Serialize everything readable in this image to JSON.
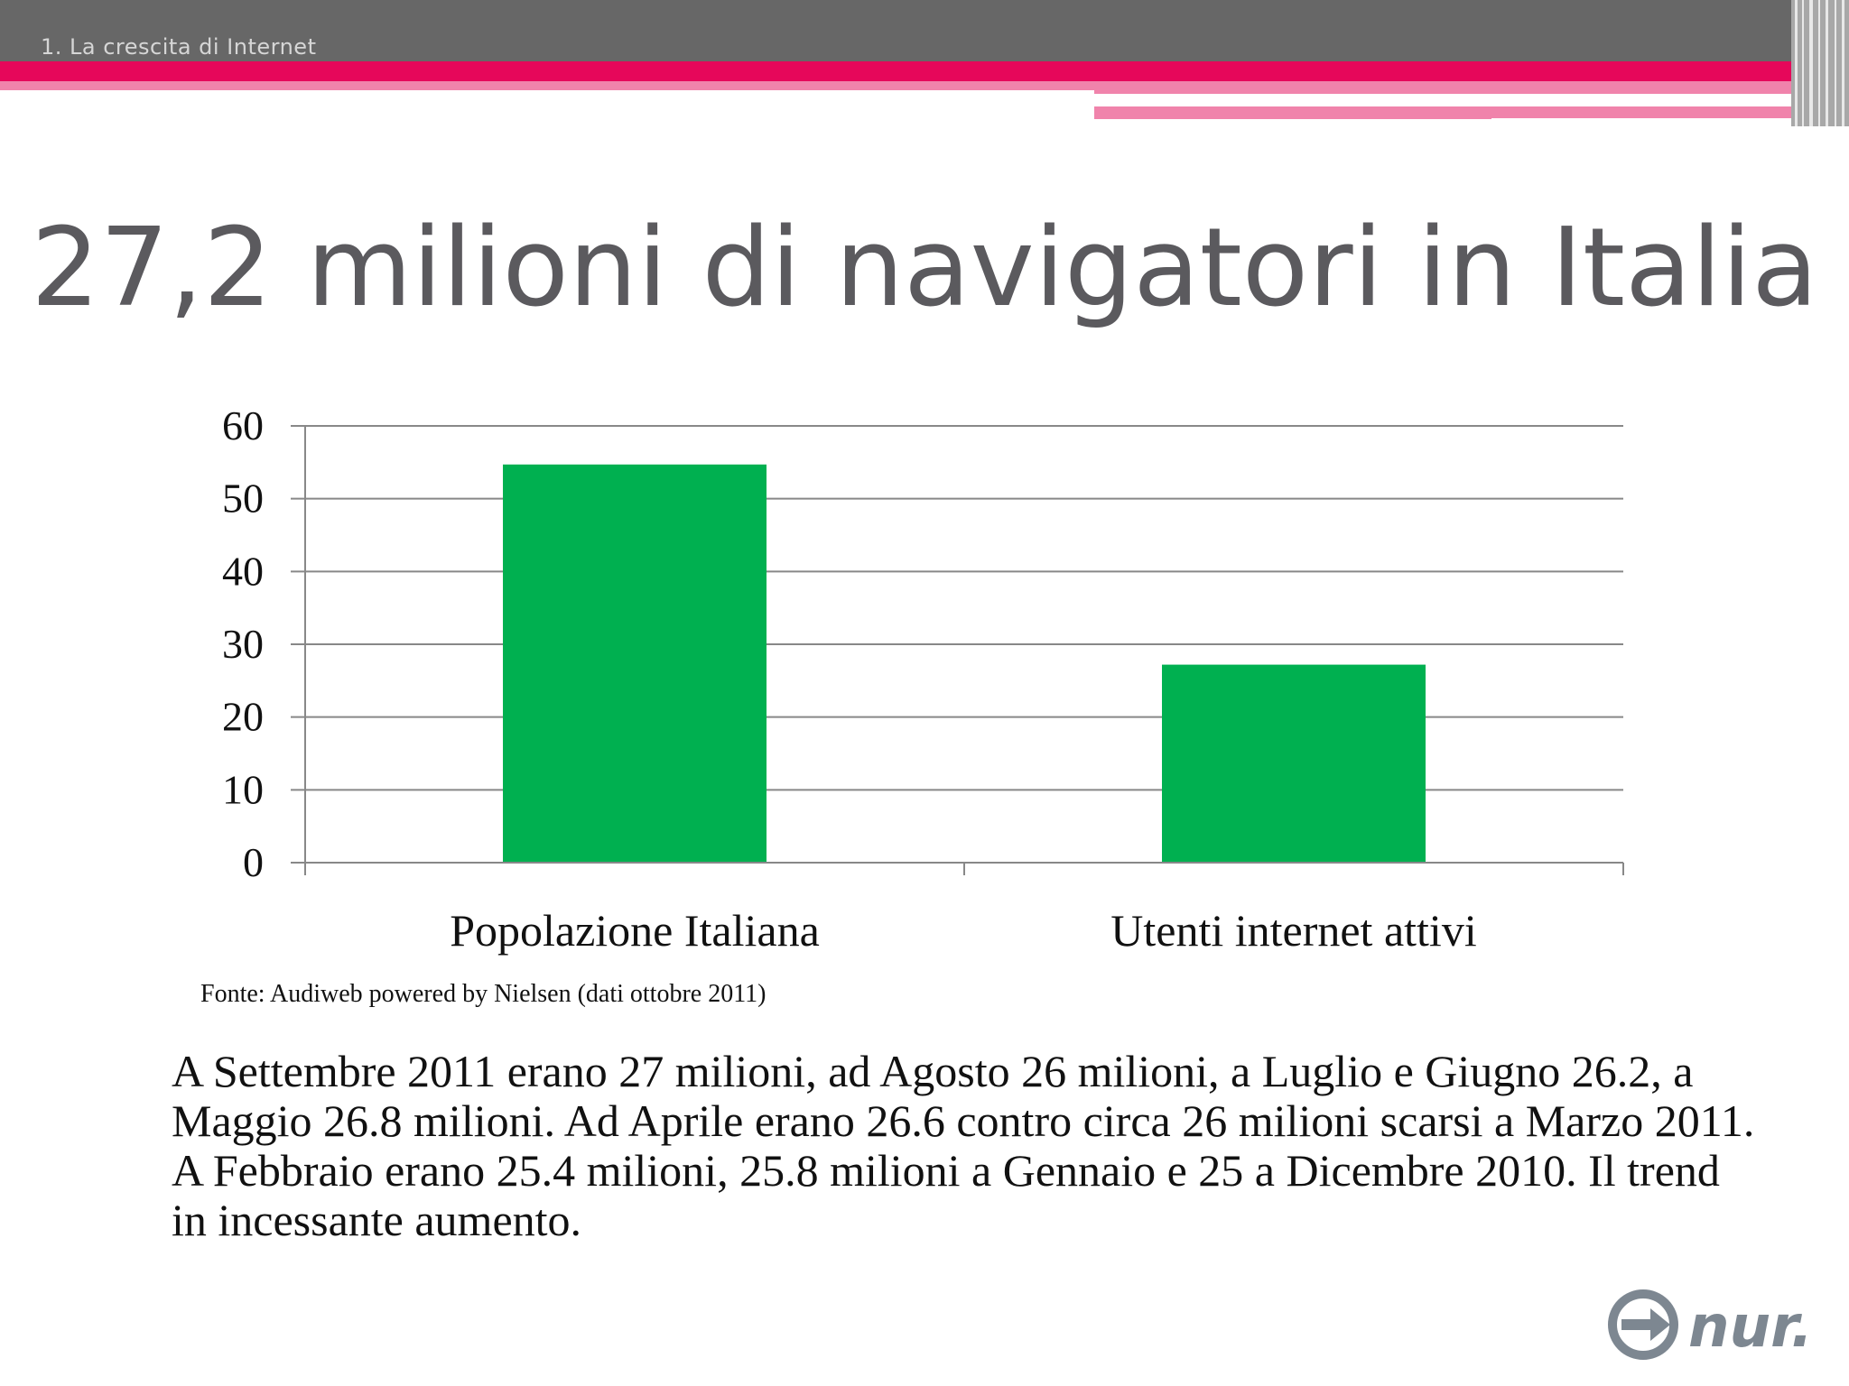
{
  "header": {
    "section_label": "1. La crescita di Internet"
  },
  "slide": {
    "title": "27,2 milioni di navigatori in Italia",
    "source_note": "Fonte: Audiweb powered by Nielsen (dati ottobre 2011)",
    "body": "A Settembre 2011 erano 27 milioni, ad Agosto 26 milioni, a Luglio e Giugno 26.2, a Maggio 26.8 milioni. Ad Aprile erano 26.6 contro circa 26 milioni scarsi a Marzo 2011. A Febbraio erano 25.4 milioni, 25.8 milioni a Gennaio e 25 a Dicembre 2010. Il trend in incessante aumento."
  },
  "logo": {
    "text": "nur.",
    "icon": "arrow-circle-icon"
  },
  "colors": {
    "bar": "#00b050",
    "header_gray": "#676767",
    "accent_magenta": "#e6075a",
    "accent_pink": "#f083ab",
    "title_gray": "#5b5a5e",
    "grid": "#888888",
    "logo_gray": "#7d8791"
  },
  "chart_data": {
    "type": "bar",
    "title": "",
    "xlabel": "",
    "ylabel": "",
    "categories": [
      "Popolazione Italiana",
      "Utenti internet attivi"
    ],
    "values": [
      54.7,
      27.2
    ],
    "ylim": [
      0,
      60
    ],
    "yticks": [
      0,
      10,
      20,
      30,
      40,
      50,
      60
    ],
    "grid": true,
    "legend": "none"
  }
}
